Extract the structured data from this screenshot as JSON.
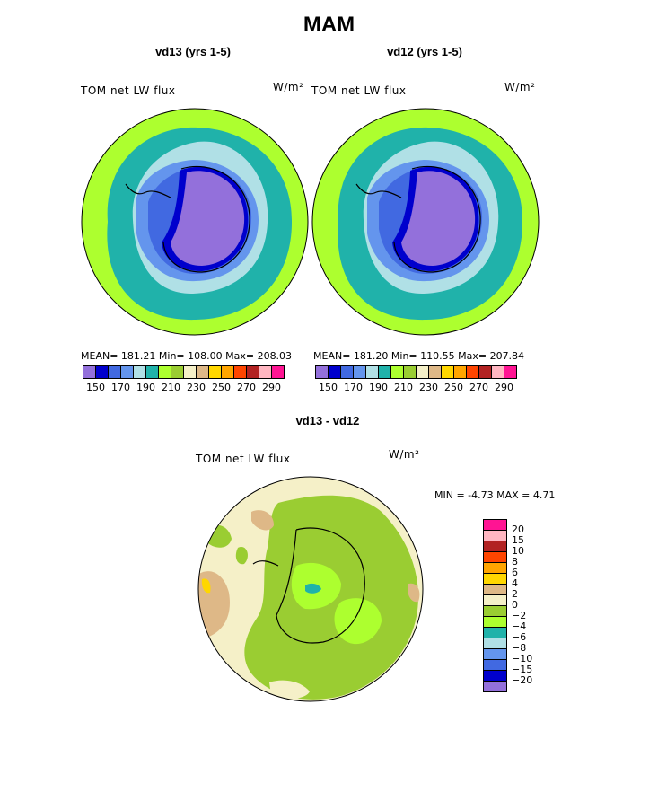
{
  "figure": {
    "title": "MAM",
    "diff_title": "vd13 - vd12"
  },
  "panels": [
    {
      "id": "vd13",
      "title": "vd13 (yrs 1-5)",
      "variable": "TOM net LW flux",
      "units": "W/m²",
      "stats": "MEAN= 181.21   Min= 108.00   Max= 208.03"
    },
    {
      "id": "vd12",
      "title": "vd12 (yrs 1-5)",
      "variable": "TOM net LW flux",
      "units": "W/m²",
      "stats": "MEAN= 181.20   Min= 110.55   Max= 207.84"
    }
  ],
  "diff_panel": {
    "variable": "TOM net LW flux",
    "units": "W/m²",
    "minmax": "MIN =   -4.73 MAX =    4.71"
  },
  "colorbar_abs": {
    "colors": [
      "#9370db",
      "#0000cd",
      "#4169e1",
      "#6495ed",
      "#b0e0e6",
      "#20b2aa",
      "#adff2f",
      "#9acd32",
      "#f5f0c8",
      "#deb887",
      "#ffd700",
      "#ffa500",
      "#ff4500",
      "#b22222",
      "#ffb6c1",
      "#ff1493"
    ],
    "tick_labels": [
      "150",
      "170",
      "190",
      "210",
      "230",
      "250",
      "270",
      "290"
    ]
  },
  "colorbar_diff": {
    "colors": [
      "#ff1493",
      "#ffb6c1",
      "#b22222",
      "#ff4500",
      "#ffa500",
      "#ffd700",
      "#deb887",
      "#f5f0c8",
      "#9acd32",
      "#adff2f",
      "#20b2aa",
      "#b0e0e6",
      "#6495ed",
      "#4169e1",
      "#0000cd",
      "#9370db"
    ],
    "tick_labels": [
      "20",
      "15",
      "10",
      "8",
      "6",
      "4",
      "2",
      "0",
      "−2",
      "−4",
      "−6",
      "−8",
      "−10",
      "−15",
      "−20"
    ]
  },
  "chart_data": [
    {
      "type": "heatmap",
      "title": "vd13 (yrs 1-5)",
      "subtitle": "TOM net LW flux",
      "units": "W/m²",
      "projection": "south polar stereographic",
      "levels": [
        150,
        160,
        170,
        180,
        190,
        200,
        210,
        220,
        230,
        240,
        250,
        260,
        270,
        280,
        290
      ],
      "mean": 181.21,
      "min": 108.0,
      "max": 208.03
    },
    {
      "type": "heatmap",
      "title": "vd12 (yrs 1-5)",
      "subtitle": "TOM net LW flux",
      "units": "W/m²",
      "projection": "south polar stereographic",
      "levels": [
        150,
        160,
        170,
        180,
        190,
        200,
        210,
        220,
        230,
        240,
        250,
        260,
        270,
        280,
        290
      ],
      "mean": 181.2,
      "min": 110.55,
      "max": 207.84
    },
    {
      "type": "heatmap",
      "title": "vd13 - vd12",
      "subtitle": "TOM net LW flux",
      "units": "W/m²",
      "projection": "south polar stereographic",
      "levels": [
        -20,
        -15,
        -10,
        -8,
        -6,
        -4,
        -2,
        0,
        2,
        4,
        6,
        8,
        10,
        15,
        20
      ],
      "min": -4.73,
      "max": 4.71
    }
  ]
}
